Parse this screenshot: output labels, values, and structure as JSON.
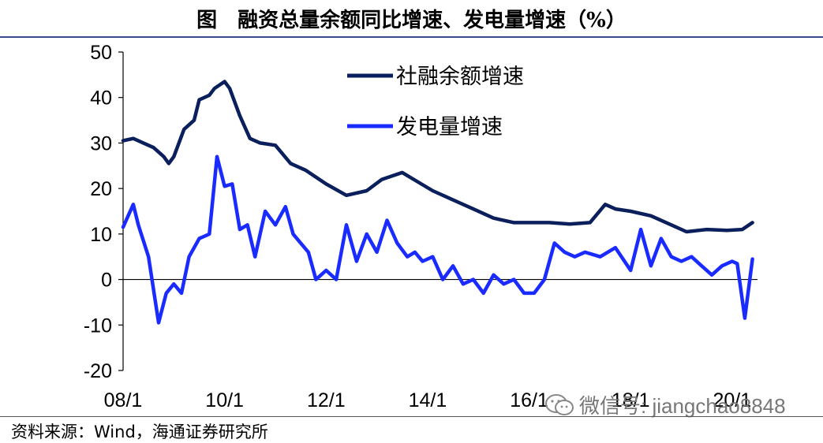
{
  "title": "图　融资总量余额同比增速、发电量增速（%）",
  "source": "资料来源：Wind，海通证券研究所",
  "watermark": "微信号: jiangchao8848",
  "chart_data": {
    "type": "line",
    "title": "图　融资总量余额同比增速、发电量增速（%）",
    "xlabel": "",
    "ylabel": "",
    "ylim": [
      -20,
      50
    ],
    "yticks": [
      "50",
      "40",
      "30",
      "20",
      "10",
      "0",
      "-10",
      "-20"
    ],
    "xticks": [
      "08/1",
      "10/1",
      "12/1",
      "14/1",
      "16/1",
      "18/1",
      "20/1"
    ],
    "legend_position": "top-center",
    "series": [
      {
        "name": "社融余额增速",
        "color": "#0a1f5c",
        "x": [
          2008.0,
          2008.2,
          2008.4,
          2008.6,
          2008.8,
          2008.9,
          2009.0,
          2009.2,
          2009.4,
          2009.5,
          2009.7,
          2009.8,
          2010.0,
          2010.1,
          2010.3,
          2010.5,
          2010.7,
          2011.0,
          2011.3,
          2011.6,
          2012.0,
          2012.4,
          2012.8,
          2013.1,
          2013.5,
          2013.8,
          2014.1,
          2014.5,
          2014.9,
          2015.3,
          2015.7,
          2016.0,
          2016.4,
          2016.8,
          2017.2,
          2017.5,
          2017.7,
          2018.0,
          2018.4,
          2018.8,
          2019.1,
          2019.5,
          2019.9,
          2020.2,
          2020.4
        ],
        "values": [
          30.5,
          31,
          30,
          29,
          27,
          25.5,
          27,
          33,
          35,
          39.5,
          40.5,
          42,
          43.5,
          42,
          36,
          31,
          30,
          29.5,
          25.5,
          24,
          21,
          18.5,
          19.5,
          22,
          23.5,
          21.5,
          19.5,
          17.5,
          15.5,
          13.5,
          12.5,
          12.5,
          12.5,
          12.2,
          12.5,
          16.5,
          15.5,
          15,
          14,
          12,
          10.5,
          11,
          10.8,
          11.0,
          12.5
        ]
      },
      {
        "name": "发电量增速",
        "color": "#1a2bff",
        "x": [
          2008.0,
          2008.2,
          2008.3,
          2008.5,
          2008.7,
          2008.85,
          2009.0,
          2009.15,
          2009.3,
          2009.5,
          2009.7,
          2009.85,
          2010.0,
          2010.15,
          2010.3,
          2010.45,
          2010.6,
          2010.8,
          2011.0,
          2011.2,
          2011.35,
          2011.5,
          2011.65,
          2011.8,
          2012.0,
          2012.2,
          2012.4,
          2012.6,
          2012.8,
          2013.0,
          2013.2,
          2013.4,
          2013.6,
          2013.75,
          2013.9,
          2014.1,
          2014.3,
          2014.5,
          2014.7,
          2014.9,
          2015.1,
          2015.3,
          2015.5,
          2015.7,
          2015.9,
          2016.1,
          2016.3,
          2016.5,
          2016.7,
          2016.9,
          2017.1,
          2017.4,
          2017.7,
          2018.0,
          2018.2,
          2018.4,
          2018.6,
          2018.8,
          2019.0,
          2019.2,
          2019.4,
          2019.6,
          2019.8,
          2020.0,
          2020.1,
          2020.25,
          2020.4
        ],
        "values": [
          11.5,
          16.5,
          12,
          5,
          -9.5,
          -3,
          -1,
          -3,
          5,
          9,
          10,
          27,
          20.5,
          21,
          11,
          12,
          5,
          15,
          12,
          16,
          10,
          8,
          6,
          0,
          2,
          0,
          12,
          4,
          10,
          6,
          13,
          8,
          5,
          6,
          4,
          5,
          0,
          3,
          -1,
          0,
          -3,
          1,
          -1,
          0,
          -3,
          -3,
          0,
          8,
          6,
          5,
          6,
          5,
          7,
          2,
          11,
          3,
          9,
          5,
          4,
          5,
          3,
          1,
          3,
          4,
          3.5,
          -8.5,
          4.5
        ]
      }
    ]
  }
}
